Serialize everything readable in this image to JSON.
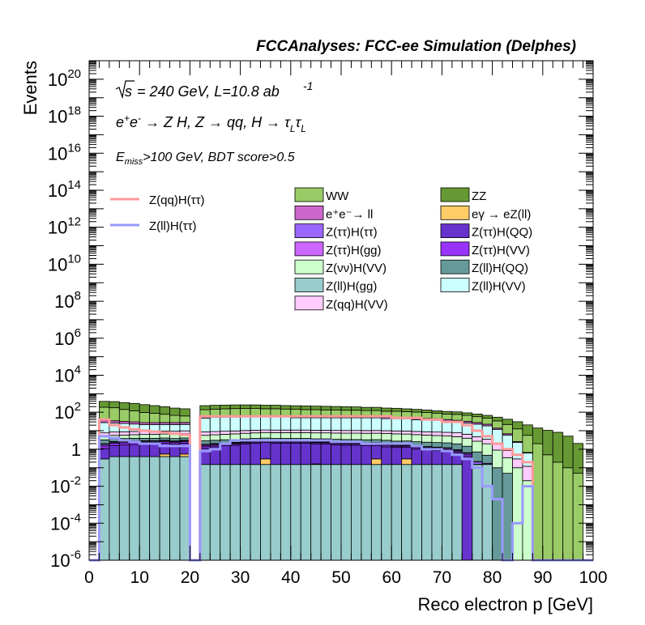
{
  "header": "FCCAnalyses: FCC-ee Simulation (Delphes)",
  "annotations": {
    "sqrt_s": "s",
    "energy_lumi": "= 240 GeV, L=10.8 ab",
    "lumi_exp": "-1",
    "process_parts": [
      "e",
      "+",
      "e",
      "-",
      " → Z H, Z  → qq, H  → τ",
      "L",
      "τ",
      "L"
    ],
    "cut_e": "E",
    "cut_sub": "miss",
    "cut_rest": ">100 GeV, BDT score>0.5"
  },
  "chart_data": {
    "type": "bar",
    "stacked": true,
    "log_y": true,
    "xlabel": "Reco electron p [GeV]",
    "ylabel": "Events",
    "xlim": [
      0,
      100
    ],
    "ylim": [
      1e-06,
      1e+21
    ],
    "x_ticks": [
      0,
      10,
      20,
      30,
      40,
      50,
      60,
      70,
      80,
      90,
      100
    ],
    "y_tick_exponents": [
      -6,
      -4,
      -2,
      0,
      2,
      4,
      6,
      8,
      10,
      12,
      14,
      16,
      18,
      20
    ],
    "bin_width": 2,
    "x": [
      1,
      3,
      5,
      7,
      9,
      11,
      13,
      15,
      17,
      19,
      21,
      23,
      25,
      27,
      29,
      31,
      33,
      35,
      37,
      39,
      41,
      43,
      45,
      47,
      49,
      51,
      53,
      55,
      57,
      59,
      61,
      63,
      65,
      67,
      69,
      71,
      73,
      75,
      77,
      79,
      81,
      83,
      85,
      87,
      89,
      91,
      93,
      95,
      97,
      99
    ],
    "series": [
      {
        "name": "Z(ll)H(gg)",
        "color": "#99cccc",
        "values": [
          0,
          0.3,
          0.4,
          0.4,
          0.4,
          0.4,
          0.4,
          0.4,
          0.4,
          0.4,
          0,
          0.15,
          0.15,
          0.15,
          0.15,
          0.15,
          0.15,
          0.15,
          0.15,
          0.15,
          0.15,
          0.15,
          0.15,
          0.15,
          0.15,
          0.15,
          0.15,
          0.15,
          0.15,
          0.15,
          0.15,
          0.15,
          0.15,
          0.15,
          0.15,
          0.15,
          0.15,
          0,
          0.15,
          0.15,
          0,
          0,
          0,
          0,
          0,
          0,
          0,
          0,
          0,
          0
        ]
      },
      {
        "name": "eγ → eZ(ll)",
        "color": "#ffcc66",
        "values": [
          0,
          0,
          0,
          0,
          0,
          0,
          0,
          0.15,
          0,
          0.15,
          0,
          0,
          0,
          0,
          0,
          0,
          0,
          0.15,
          0,
          0,
          0,
          0,
          0.01,
          0,
          0,
          0,
          0,
          0,
          0.15,
          0,
          0,
          0.15,
          0,
          0,
          0,
          0,
          0,
          0,
          0,
          0,
          0,
          0,
          0,
          0,
          0,
          0,
          0,
          0,
          0,
          0
        ]
      },
      {
        "name": "Z(ττ)H(QQ)",
        "color": "#6633cc",
        "values": [
          0,
          0.8,
          1.2,
          1.3,
          1.4,
          1.5,
          1.6,
          1.6,
          1.5,
          1.6,
          0,
          1,
          1.2,
          1.4,
          1.5,
          1.8,
          2,
          2,
          2,
          2,
          2,
          2,
          1.8,
          1.8,
          1.6,
          1.5,
          1.5,
          1.4,
          1.3,
          1.2,
          1.1,
          1,
          0.9,
          0.8,
          0.7,
          0.6,
          0.5,
          0.4,
          0,
          0,
          0,
          0,
          0,
          0,
          0,
          0,
          0,
          0,
          0,
          0
        ]
      },
      {
        "name": "Z(ττ)H(VV)",
        "color": "#9933ff",
        "values": [
          0,
          0.4,
          0.5,
          0.5,
          0.5,
          0.5,
          0.4,
          0.4,
          0.4,
          0.4,
          0,
          0.3,
          0.3,
          0.3,
          0.3,
          0.3,
          0.3,
          0.3,
          0.3,
          0.3,
          0.3,
          0.3,
          0.3,
          0.3,
          0.3,
          0.3,
          0.3,
          0.3,
          0.3,
          0.3,
          0.2,
          0.2,
          0.2,
          0.2,
          0.2,
          0.2,
          0.1,
          0.1,
          0.005,
          0.003,
          0,
          0,
          0,
          0,
          0,
          0,
          0,
          0,
          0,
          0
        ]
      },
      {
        "name": "Z(ττ)H(ττ)",
        "color": "#9966ff",
        "values": [
          0,
          0.3,
          0.3,
          0.3,
          0.3,
          0.3,
          0.3,
          0.3,
          0.3,
          0.3,
          0,
          0.2,
          0.2,
          0.2,
          0.2,
          0.2,
          0.2,
          0.2,
          0.2,
          0.2,
          0.2,
          0.2,
          0.2,
          0.2,
          0.2,
          0.2,
          0.2,
          0.2,
          0.2,
          0.2,
          0.15,
          0.15,
          0.15,
          0.15,
          0.15,
          0.15,
          0.1,
          0.1,
          0.05,
          0.02,
          0,
          0,
          0,
          0,
          0,
          0,
          0,
          0,
          0,
          0
        ]
      },
      {
        "name": "Z(ττ)H(gg)",
        "color": "#cc66ff",
        "values": [
          0,
          0.2,
          0.2,
          0.2,
          0.2,
          0.2,
          0.2,
          0.2,
          0.2,
          0.2,
          0,
          0.2,
          0.2,
          0.2,
          0.2,
          0.2,
          0.2,
          0.2,
          0.2,
          0.2,
          0.2,
          0.2,
          0.2,
          0.2,
          0.2,
          0.2,
          0.2,
          0.2,
          0.2,
          0.2,
          0.15,
          0.15,
          0.15,
          0.1,
          0.1,
          0.1,
          0.1,
          0.05,
          0.01,
          0,
          0,
          0,
          0,
          0,
          0,
          0,
          0,
          0,
          0,
          0
        ]
      },
      {
        "name": "Z(ll)H(QQ)",
        "color": "#669999",
        "values": [
          0,
          1.2,
          1.2,
          1.1,
          1.1,
          1,
          1,
          1,
          1,
          1,
          0,
          1,
          1,
          1,
          1,
          1,
          1,
          1,
          1,
          1,
          1,
          1,
          1,
          1,
          1,
          1,
          1,
          1,
          1,
          1,
          1,
          1,
          1,
          1,
          1,
          1,
          1,
          0.8,
          0.5,
          0.3,
          0.1,
          0.05,
          0,
          0,
          0,
          0,
          0,
          0,
          0,
          0
        ]
      },
      {
        "name": "Z(νν)H(VV)",
        "color": "#ccffcc",
        "values": [
          0,
          1.5,
          1.8,
          2,
          2.2,
          2.4,
          2.5,
          2.6,
          2.7,
          2.8,
          0,
          2.8,
          3,
          3.2,
          3.4,
          3.6,
          3.8,
          4,
          4,
          4,
          4,
          4,
          4,
          4,
          4,
          4,
          4,
          4,
          4,
          4,
          4,
          3.8,
          3.6,
          3.4,
          3.2,
          3,
          2.8,
          2.5,
          2,
          1.5,
          0.8,
          0.3,
          0.1,
          0.02,
          0,
          0,
          0,
          0,
          0,
          0
        ]
      },
      {
        "name": "Z(qq)H(VV)",
        "color": "#ffccff",
        "values": [
          0,
          3,
          3,
          3,
          3,
          3,
          3,
          3,
          3,
          3,
          0,
          3,
          3,
          3,
          3,
          3,
          3,
          3,
          3,
          3,
          3,
          3,
          3,
          3,
          3,
          3,
          3,
          3,
          3,
          3,
          3,
          3,
          3,
          3,
          3,
          3,
          3,
          2.5,
          2,
          1.5,
          1,
          0.5,
          0.2,
          0.1,
          0,
          0,
          0,
          0,
          0,
          0
        ]
      },
      {
        "name": "Z(ll)H(VV)",
        "color": "#ccffff",
        "values": [
          0,
          20,
          18,
          16,
          14,
          12,
          12,
          12,
          12,
          12,
          0,
          40,
          45,
          45,
          45,
          45,
          45,
          45,
          45,
          45,
          40,
          40,
          40,
          40,
          40,
          40,
          40,
          40,
          40,
          35,
          35,
          35,
          30,
          30,
          28,
          25,
          22,
          20,
          18,
          15,
          10,
          5,
          2,
          0.5,
          0,
          0,
          0,
          0,
          0,
          0
        ]
      },
      {
        "name": "e⁺e⁻→ ll",
        "color": "#cc66cc",
        "values": [
          0,
          8,
          8,
          7,
          7,
          6,
          6,
          6,
          6,
          6,
          0,
          8,
          8,
          8,
          8,
          8,
          8,
          8,
          8,
          8,
          8,
          8,
          8,
          8,
          8,
          8,
          8,
          8,
          8,
          8,
          8,
          8,
          8,
          8,
          8,
          7,
          7,
          6,
          5,
          4,
          2,
          1,
          0.3,
          0.05,
          0,
          0,
          0,
          0,
          0,
          0
        ]
      },
      {
        "name": "WW",
        "color": "#99cc66",
        "values": [
          0,
          150,
          140,
          110,
          90,
          70,
          60,
          50,
          40,
          35,
          0,
          80,
          85,
          90,
          95,
          95,
          95,
          90,
          90,
          85,
          85,
          80,
          80,
          75,
          75,
          70,
          70,
          65,
          65,
          60,
          60,
          55,
          55,
          50,
          45,
          40,
          40,
          35,
          30,
          25,
          20,
          15,
          10,
          5,
          2,
          0.5,
          0.2,
          0.1,
          0.05,
          0
        ]
      },
      {
        "name": "ZZ",
        "color": "#669933",
        "values": [
          0,
          200,
          200,
          190,
          180,
          160,
          140,
          120,
          100,
          90,
          0,
          90,
          90,
          90,
          90,
          90,
          90,
          85,
          85,
          80,
          80,
          80,
          75,
          75,
          70,
          70,
          65,
          60,
          60,
          55,
          50,
          45,
          40,
          35,
          30,
          30,
          28,
          25,
          22,
          20,
          20,
          20,
          18,
          15,
          12,
          10,
          8,
          5,
          2,
          0
        ]
      }
    ],
    "signal_lines": [
      {
        "name": "Z(qq)H(ττ)",
        "color": "#ff9999",
        "values": [
          0,
          40,
          20,
          15,
          12,
          10,
          9,
          8,
          7,
          6,
          0,
          60,
          60,
          60,
          60,
          60,
          60,
          60,
          60,
          60,
          60,
          60,
          60,
          60,
          60,
          60,
          60,
          60,
          60,
          60,
          50,
          50,
          50,
          40,
          40,
          30,
          30,
          20,
          10,
          5,
          2,
          1,
          0.5,
          0.2,
          0,
          0,
          0,
          0,
          0,
          0
        ]
      },
      {
        "name": "Z(ll)H(ττ)",
        "color": "#9999ff",
        "values": [
          0,
          5,
          4,
          3,
          2.5,
          2,
          2,
          1.5,
          1.5,
          1.5,
          0,
          0.8,
          1,
          2,
          3,
          3,
          3,
          3,
          3,
          3,
          3,
          3,
          3,
          3,
          2.5,
          2.5,
          2.5,
          2,
          2,
          2,
          2,
          2,
          1.5,
          1,
          1,
          0.8,
          0.5,
          0.3,
          0.1,
          0.01,
          0.002,
          0,
          0.0001,
          0.01,
          0,
          0,
          0,
          0,
          0,
          0
        ]
      }
    ],
    "legend": {
      "columns": [
        [
          "WW",
          "e⁺e⁻→ ll",
          "Z(ττ)H(ττ)",
          "Z(ττ)H(gg)",
          "Z(νν)H(VV)",
          "Z(ll)H(gg)",
          "Z(qq)H(VV)"
        ],
        [
          "ZZ",
          "eγ → eZ(ll)",
          "Z(ττ)H(QQ)",
          "Z(ττ)H(VV)",
          "Z(ll)H(QQ)",
          "Z(ll)H(VV)"
        ]
      ],
      "lines": [
        "Z(qq)H(ττ)",
        "Z(ll)H(ττ)"
      ]
    }
  }
}
